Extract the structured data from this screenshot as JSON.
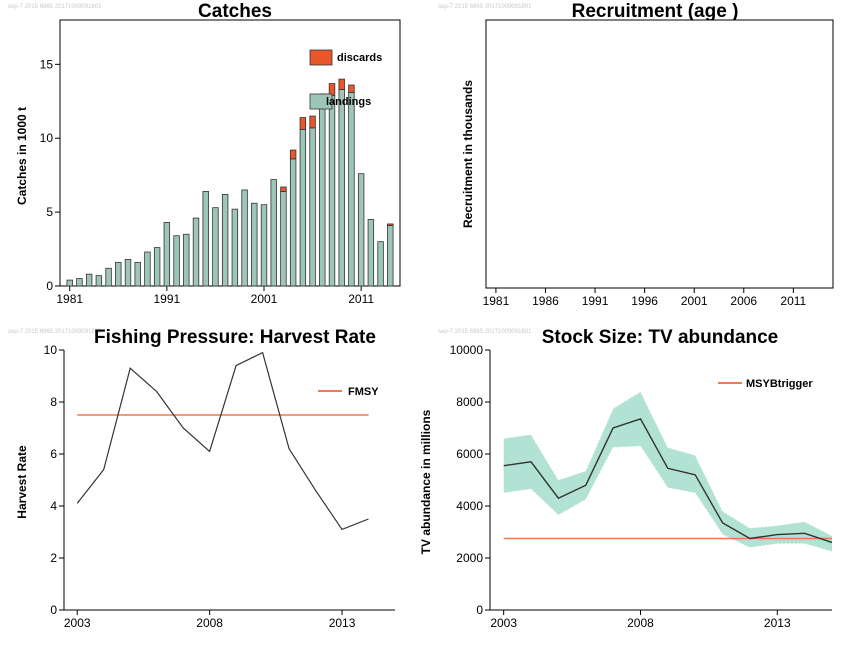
{
  "colors": {
    "landings": "#9ec6b7",
    "discards": "#e8562a",
    "reference_line": "#ee7b4e",
    "band": "#7fcfb5",
    "line": "#333333"
  },
  "stamp": "sep-7 2015 6965 20171009091801",
  "chart_data": [
    {
      "type": "bar",
      "title": "Catches",
      "ylabel": "Catches in 1000 t",
      "xlim": [
        1980,
        2015
      ],
      "ylim": [
        0,
        18
      ],
      "xticks": [
        1981,
        1991,
        2001,
        2011
      ],
      "yticks": [
        0,
        5,
        10,
        15
      ],
      "legend": [
        {
          "name": "discards",
          "color": "#e8562a"
        },
        {
          "name": "landings",
          "color": "#9ec6b7"
        }
      ],
      "legend_position": "top-right",
      "x": [
        1981,
        1982,
        1983,
        1984,
        1985,
        1986,
        1987,
        1988,
        1989,
        1990,
        1991,
        1992,
        1993,
        1994,
        1995,
        1996,
        1997,
        1998,
        1999,
        2000,
        2001,
        2002,
        2003,
        2004,
        2005,
        2006,
        2007,
        2008,
        2009,
        2010,
        2011,
        2012,
        2013,
        2014
      ],
      "series": [
        {
          "name": "landings",
          "values": [
            0.4,
            0.5,
            0.8,
            0.7,
            1.2,
            1.6,
            1.8,
            1.6,
            2.3,
            2.6,
            4.3,
            3.4,
            3.5,
            4.6,
            6.4,
            5.3,
            6.2,
            5.2,
            6.5,
            5.6,
            5.5,
            7.2,
            6.4,
            8.6,
            10.6,
            10.7,
            12.2,
            12.9,
            13.3,
            13.1,
            7.6,
            4.5,
            3.0,
            4.1
          ]
        },
        {
          "name": "discards",
          "values": [
            0,
            0,
            0,
            0,
            0,
            0,
            0,
            0,
            0,
            0,
            0,
            0,
            0,
            0,
            0,
            0,
            0,
            0,
            0,
            0,
            0,
            0,
            0.3,
            0.6,
            0.8,
            0.8,
            0.8,
            0.8,
            0.7,
            0.5,
            0,
            0,
            0,
            0.1
          ]
        }
      ]
    },
    {
      "type": "line",
      "title": "Recruitment (age )",
      "ylabel": "Recruitment in thousands",
      "xlim": [
        1980,
        2015
      ],
      "xticks": [
        1981,
        1986,
        1991,
        1996,
        2001,
        2006,
        2011
      ],
      "series": []
    },
    {
      "type": "line",
      "title": "Fishing Pressure: Harvest Rate",
      "ylabel": "Harvest Rate",
      "xlim": [
        2002.5,
        2015
      ],
      "ylim": [
        0,
        10
      ],
      "xticks": [
        2003,
        2008,
        2013
      ],
      "yticks": [
        0,
        2,
        4,
        6,
        8,
        10
      ],
      "x": [
        2003,
        2004,
        2005,
        2006,
        2007,
        2008,
        2009,
        2010,
        2011,
        2012,
        2013,
        2014
      ],
      "series": [
        {
          "values": [
            4.1,
            5.4,
            9.3,
            8.4,
            7.0,
            6.1,
            9.4,
            9.9,
            6.2,
            4.6,
            3.1,
            3.5
          ]
        }
      ],
      "reference_lines": [
        {
          "name": "FMSY",
          "value": 7.5,
          "x_range": [
            2003,
            2014
          ]
        }
      ],
      "legend_position": "top-right"
    },
    {
      "type": "area",
      "title": "Stock Size: TV abundance",
      "ylabel": "TV abundance in millions",
      "xlim": [
        2002.5,
        2015
      ],
      "ylim": [
        0,
        10000
      ],
      "xticks": [
        2003,
        2008,
        2013
      ],
      "yticks": [
        0,
        2000,
        4000,
        6000,
        8000,
        10000
      ],
      "x": [
        2003,
        2004,
        2005,
        2006,
        2007,
        2008,
        2009,
        2010,
        2011,
        2012,
        2013,
        2014,
        2015
      ],
      "series": [
        {
          "name": "estimate",
          "values": [
            5550,
            5700,
            4300,
            4800,
            7000,
            7350,
            5450,
            5200,
            3350,
            2750,
            2900,
            2950,
            2600
          ]
        },
        {
          "name": "upper",
          "values": [
            6600,
            6750,
            5000,
            5350,
            7750,
            8400,
            6250,
            5950,
            3800,
            3150,
            3250,
            3400,
            2850
          ]
        },
        {
          "name": "lower",
          "values": [
            4500,
            4650,
            3650,
            4250,
            6250,
            6300,
            4700,
            4500,
            2900,
            2400,
            2550,
            2550,
            2250
          ]
        }
      ],
      "reference_lines": [
        {
          "name": "MSYBtrigger",
          "value": 2750,
          "x_range": [
            2003,
            2015
          ]
        }
      ],
      "legend_position": "top-right"
    }
  ]
}
